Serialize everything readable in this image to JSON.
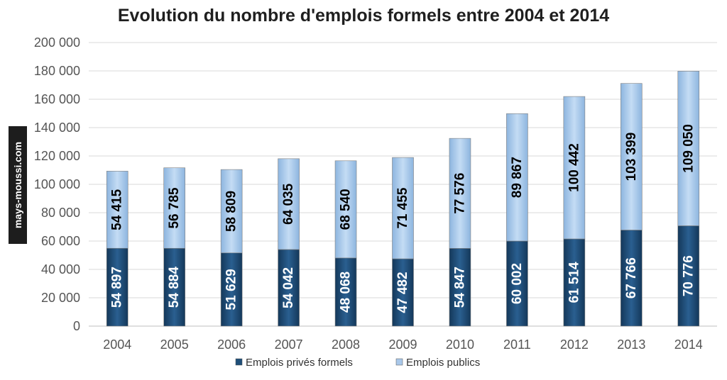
{
  "chart_data": {
    "type": "bar",
    "stacked": true,
    "title": "Evolution du nombre d'emplois formels entre 2004 et 2014",
    "categories": [
      "2004",
      "2005",
      "2006",
      "2007",
      "2008",
      "2009",
      "2010",
      "2011",
      "2012",
      "2013",
      "2014"
    ],
    "series": [
      {
        "name": "Emplois privés formels",
        "color": "#1f4e79",
        "values": [
          54897,
          54884,
          51629,
          54042,
          48068,
          47482,
          54847,
          60002,
          61514,
          67766,
          70776
        ],
        "labels": [
          "54 897",
          "54 884",
          "51 629",
          "54 042",
          "48 068",
          "47 482",
          "54 847",
          "60 002",
          "61 514",
          "67 766",
          "70 776"
        ]
      },
      {
        "name": "Emplois publics",
        "color": "#a9c8ea",
        "values": [
          54415,
          56785,
          58809,
          64035,
          68540,
          71455,
          77576,
          89867,
          100442,
          103399,
          109050
        ],
        "labels": [
          "54 415",
          "56 785",
          "58 809",
          "64 035",
          "68 540",
          "71 455",
          "77 576",
          "89 867",
          "100 442",
          "103 399",
          "109 050"
        ]
      }
    ],
    "ylim": [
      0,
      200000
    ],
    "yticks": [
      0,
      20000,
      40000,
      60000,
      80000,
      100000,
      120000,
      140000,
      160000,
      180000,
      200000
    ],
    "ytick_labels": [
      "0",
      "20 000",
      "40 000",
      "60 000",
      "80 000",
      "100 000",
      "120 000",
      "140 000",
      "160 000",
      "180 000",
      "200 000"
    ],
    "grid": true,
    "legend_position": "bottom"
  },
  "watermark": "mays-moussi.com"
}
